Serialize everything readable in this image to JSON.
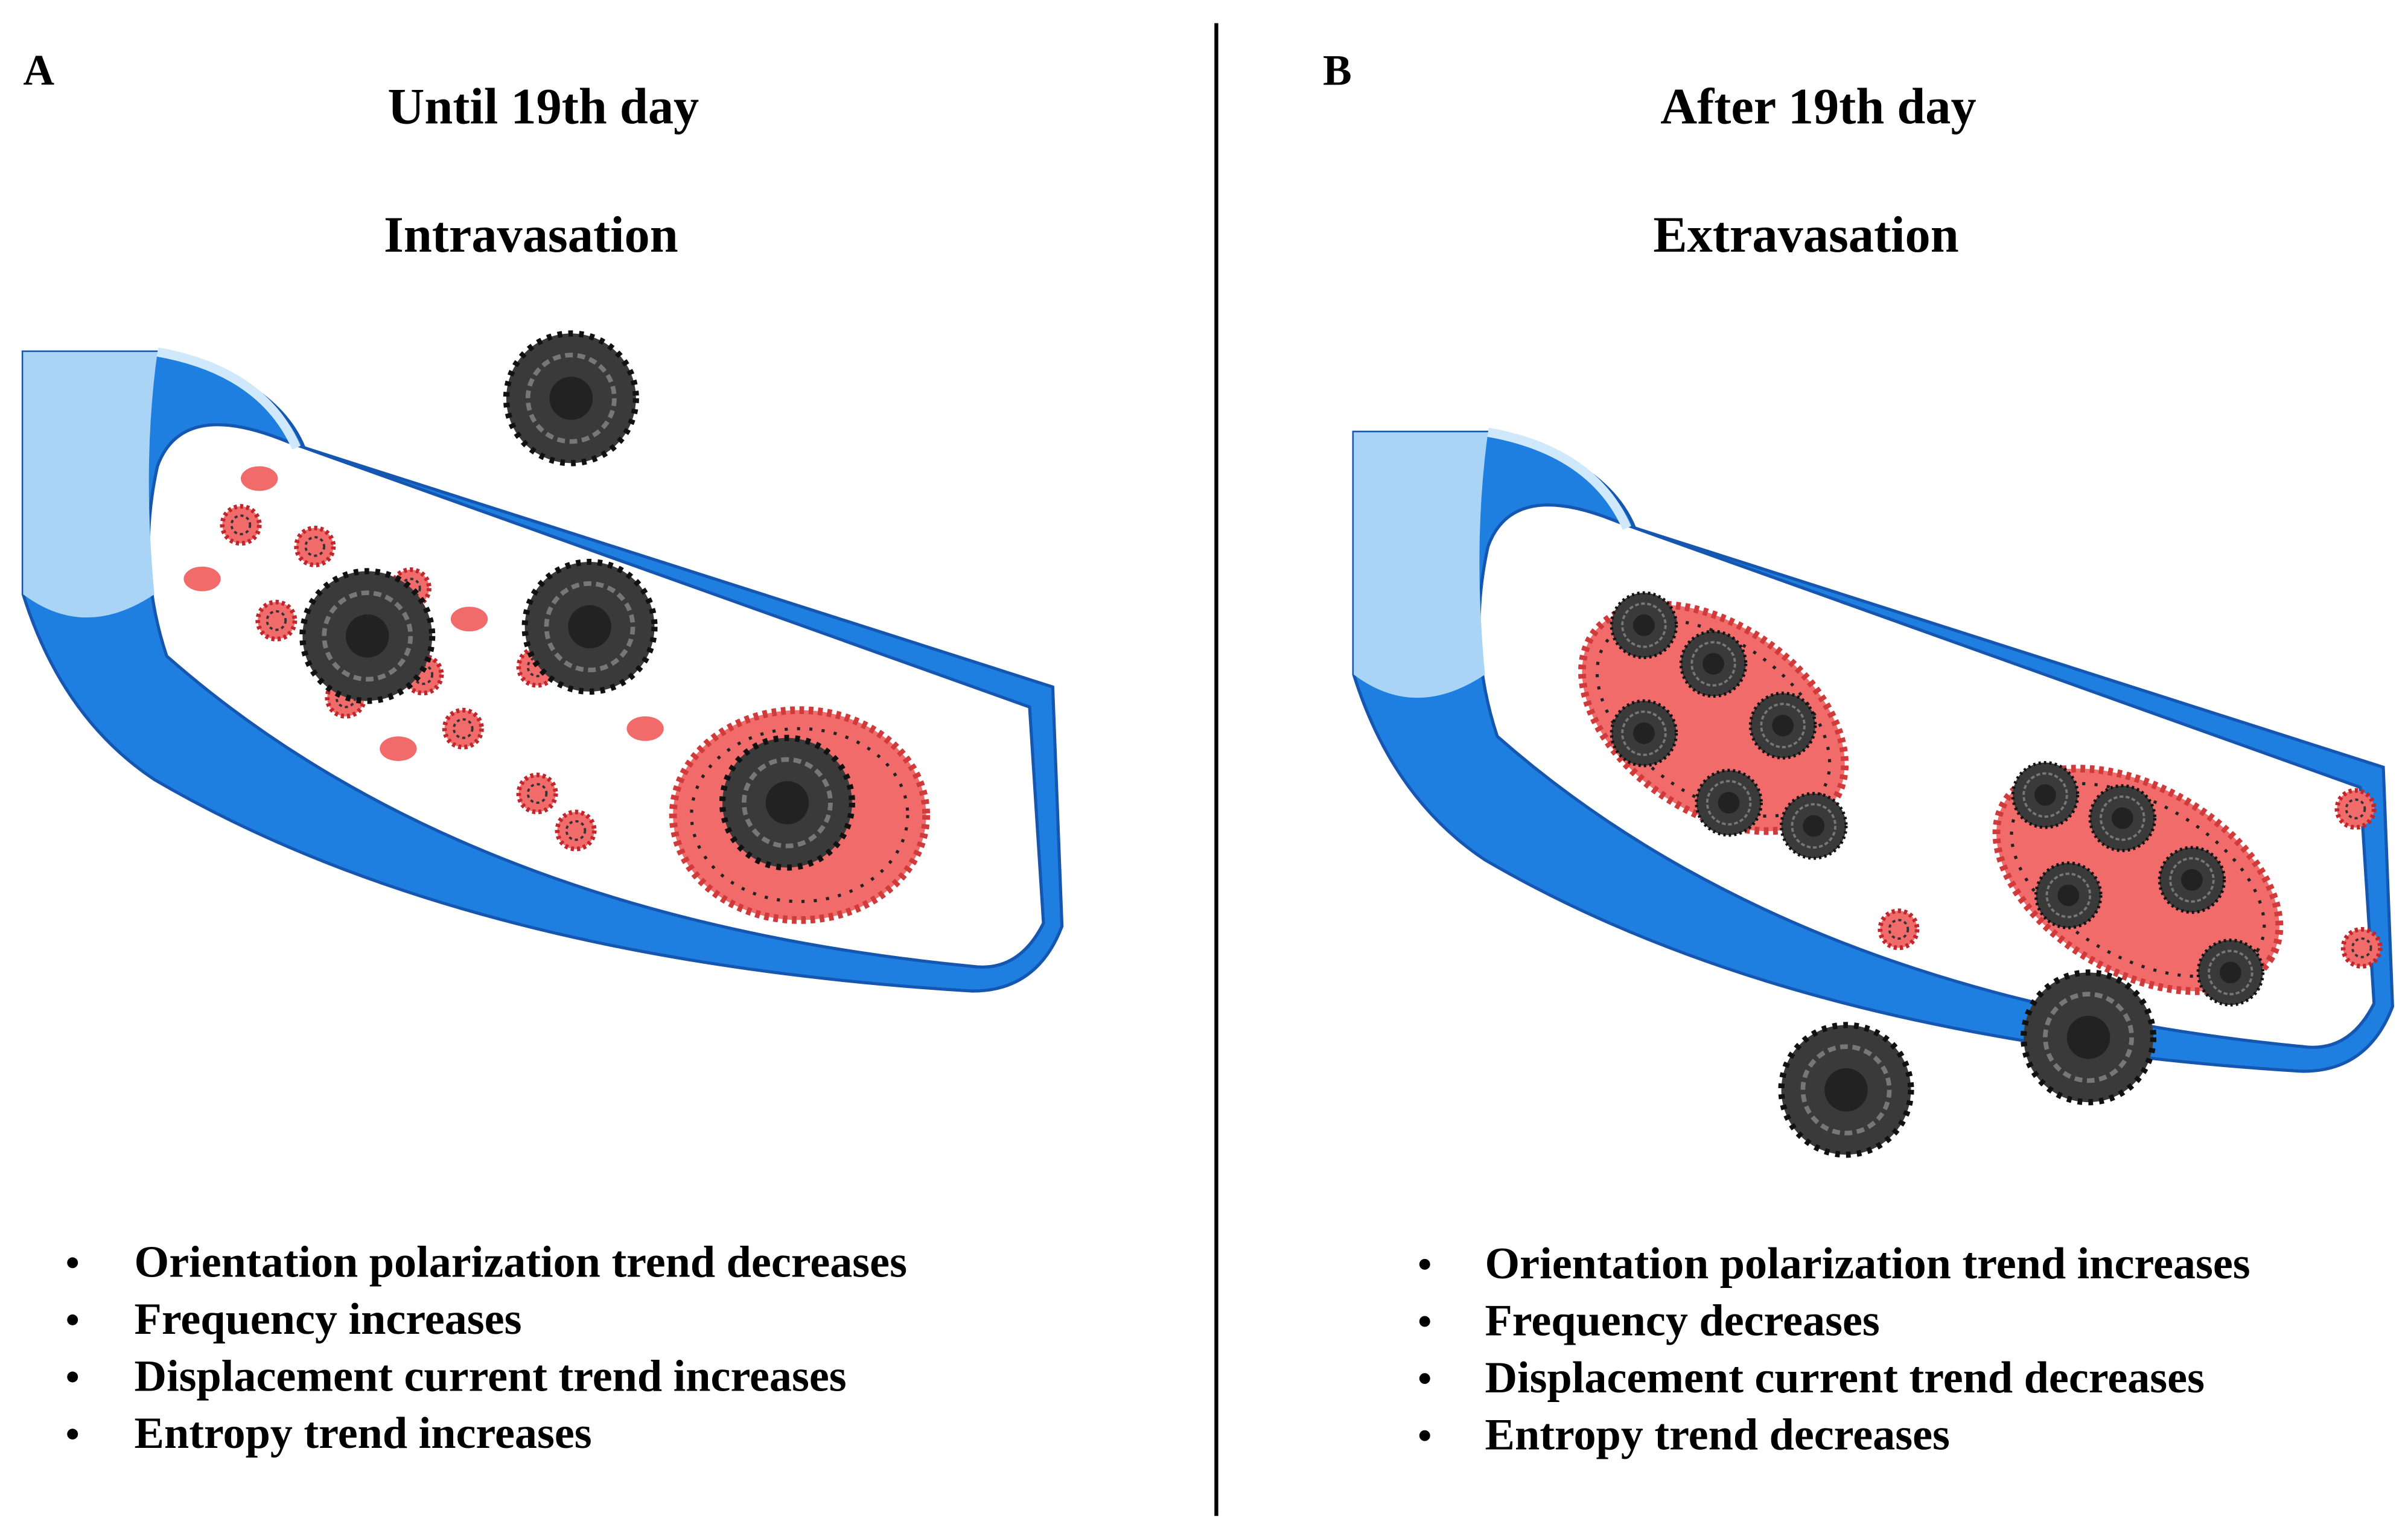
{
  "panels": [
    {
      "label": "A",
      "title": "Until 19th day",
      "subtitle": "Intravasation",
      "bullets": [
        "Orientation polarization trend decreases",
        "Frequency increases",
        "Displacement current trend increases",
        "Entropy trend increases"
      ]
    },
    {
      "label": "B",
      "title": "After 19th day",
      "subtitle": "Extravasation",
      "bullets": [
        "Orientation polarization trend increases",
        "Frequency decreases",
        "Displacement current trend decreases",
        "Entropy trend decreases"
      ]
    }
  ]
}
